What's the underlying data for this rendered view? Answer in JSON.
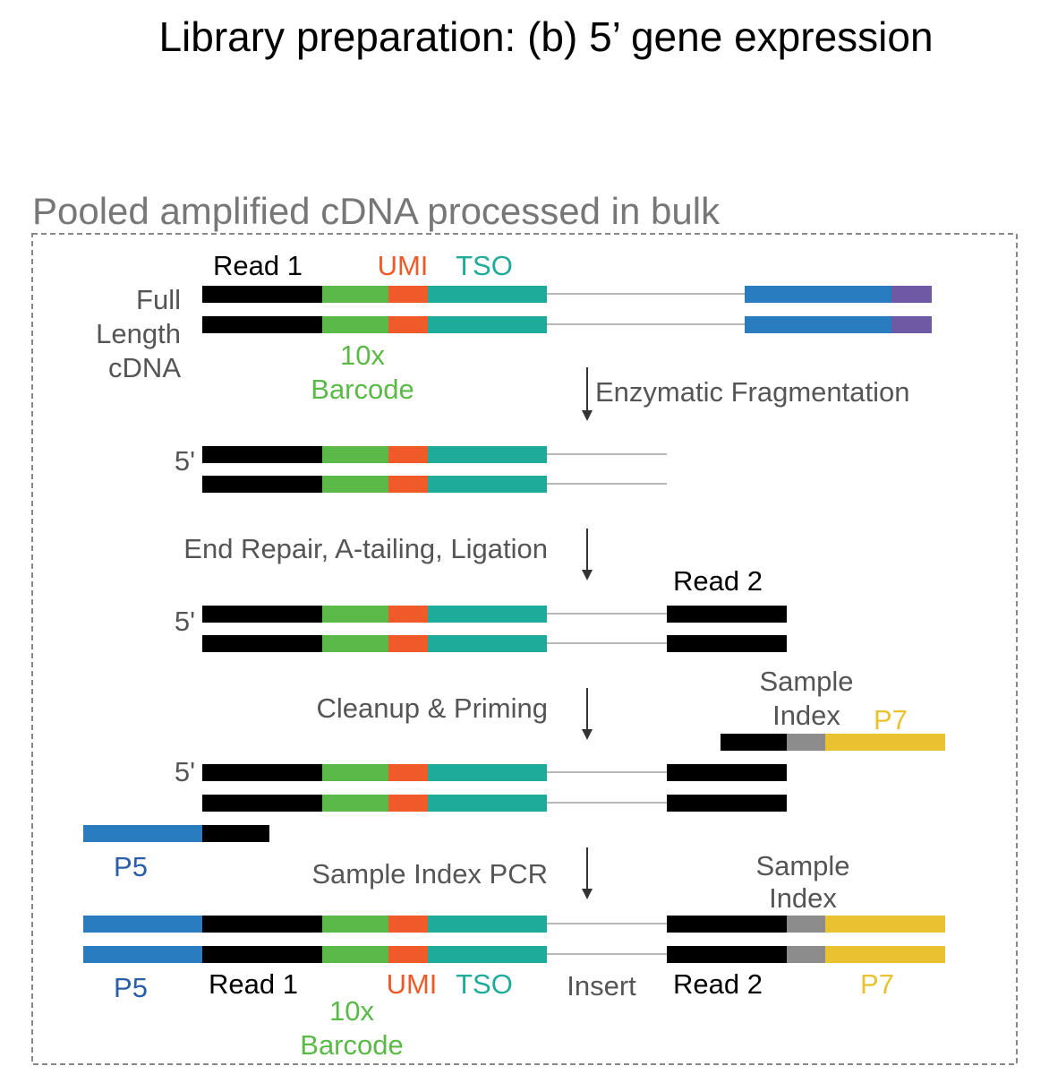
{
  "title": "Library preparation: (b) 5’ gene expression",
  "box_title": "Pooled amplified cDNA processed in bulk",
  "colors": {
    "black": "#000000",
    "barcode": "#5bb947",
    "umi": "#f05a28",
    "tso": "#1fab99",
    "p5": "#2a7cc1",
    "purple": "#6e59a5",
    "index": "#8c8c8c",
    "p7": "#e8c230",
    "line": "#b8b8b8",
    "label_gray": "#555555",
    "p5_text": "#2a5ea8"
  },
  "labels": {
    "full": "Full",
    "length": "Length",
    "cdna": "cDNA",
    "read1": "Read 1",
    "umi": "UMI",
    "tso": "TSO",
    "barcode_10x": "10x",
    "barcode_word": "Barcode",
    "five_prime": "5'",
    "read2": "Read 2",
    "sample": "Sample",
    "index": "Index",
    "p7": "P7",
    "p5": "P5",
    "insert": "Insert"
  },
  "steps": {
    "fragmentation": "Enzymatic Fragmentation",
    "end_repair": "End Repair, A-tailing, Ligation",
    "cleanup": "Cleanup & Priming",
    "pcr": "Sample Index PCR"
  }
}
